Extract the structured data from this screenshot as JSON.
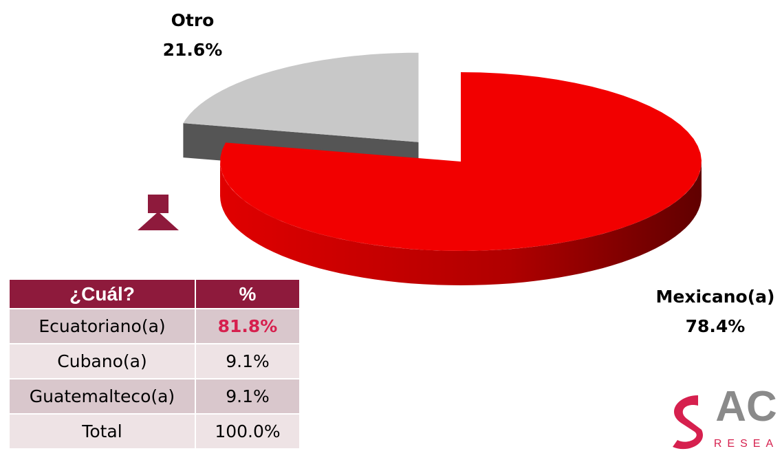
{
  "chart_data": {
    "type": "pie",
    "categories": [
      "Mexicano(a)",
      "Otro"
    ],
    "values": [
      78.4,
      21.6
    ],
    "value_labels": [
      "78.4%",
      "21.6%"
    ],
    "colors": [
      "#f20000",
      "#c8c8c8"
    ]
  },
  "table": {
    "header": [
      "¿Cuál?",
      "%"
    ],
    "rows": [
      [
        "Ecuatoriano(a)",
        "81.8%"
      ],
      [
        "Cubano(a)",
        "9.1%"
      ],
      [
        "Guatemalteco(a)",
        "9.1%"
      ],
      [
        "Total",
        "100.0%"
      ]
    ]
  },
  "logo": {
    "text": "AC",
    "subtext": "RESEA"
  }
}
